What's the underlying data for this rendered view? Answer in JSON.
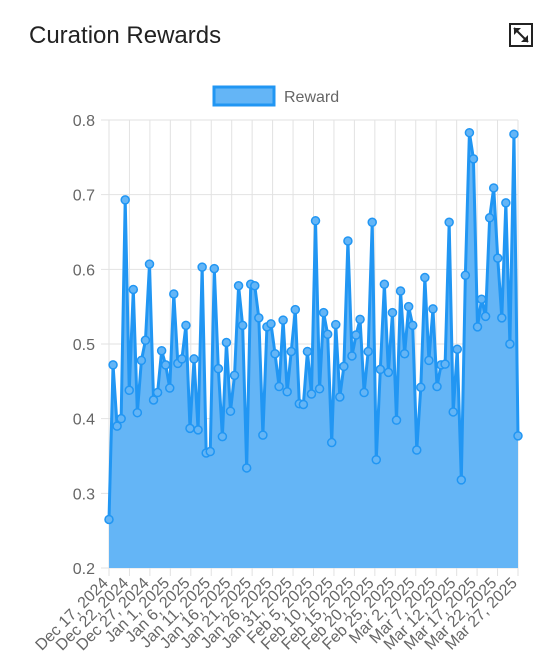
{
  "widget": {
    "title": "Curation Rewards",
    "expand_icon": "expand-icon"
  },
  "chart_data": {
    "type": "area",
    "legend": {
      "placement": "top-center"
    },
    "series": [
      {
        "name": "Reward",
        "border_color": "#2196f3",
        "fill_color": "#64b5f6",
        "values": [
          0.265,
          0.472,
          0.39,
          0.4,
          0.693,
          0.438,
          0.573,
          0.408,
          0.478,
          0.505,
          0.607,
          0.425,
          0.435,
          0.491,
          0.472,
          0.441,
          0.567,
          0.474,
          0.48,
          0.525,
          0.387,
          0.48,
          0.385,
          0.603,
          0.354,
          0.356,
          0.601,
          0.467,
          0.376,
          0.502,
          0.41,
          0.458,
          0.578,
          0.525,
          0.334,
          0.58,
          0.578,
          0.535,
          0.378,
          0.523,
          0.527,
          0.487,
          0.443,
          0.532,
          0.436,
          0.49,
          0.546,
          0.42,
          0.419,
          0.49,
          0.433,
          0.665,
          0.44,
          0.542,
          0.513,
          0.368,
          0.526,
          0.429,
          0.47,
          0.638,
          0.484,
          0.512,
          0.533,
          0.435,
          0.49,
          0.663,
          0.345,
          0.466,
          0.58,
          0.462,
          0.542,
          0.398,
          0.571,
          0.487,
          0.55,
          0.525,
          0.358,
          0.442,
          0.589,
          0.478,
          0.547,
          0.443,
          0.472,
          0.473,
          0.663,
          0.409,
          0.493,
          0.318,
          0.592,
          0.783,
          0.748,
          0.523,
          0.56,
          0.537,
          0.669,
          0.709,
          0.615,
          0.535,
          0.689,
          0.5,
          0.781,
          0.377
        ]
      }
    ],
    "x_tick_labels": [
      "Dec 17, 2024",
      "Dec 22, 2024",
      "Dec 27, 2024",
      "Jan 1, 2025",
      "Jan 6, 2025",
      "Jan 11, 2025",
      "Jan 16, 2025",
      "Jan 21, 2025",
      "Jan 26, 2025",
      "Jan 31, 2025",
      "Feb 5, 2025",
      "Feb 10, 2025",
      "Feb 15, 2025",
      "Feb 20, 2025",
      "Feb 25, 2025",
      "Mar 2, 2025",
      "Mar 7, 2025",
      "Mar 12, 2025",
      "Mar 17, 2025",
      "Mar 22, 2025",
      "Mar 27, 2025"
    ],
    "y_ticks": [
      "0.2",
      "0.3",
      "0.4",
      "0.5",
      "0.6",
      "0.7",
      "0.8"
    ],
    "ylim": [
      0.2,
      0.8
    ],
    "grid": true
  }
}
